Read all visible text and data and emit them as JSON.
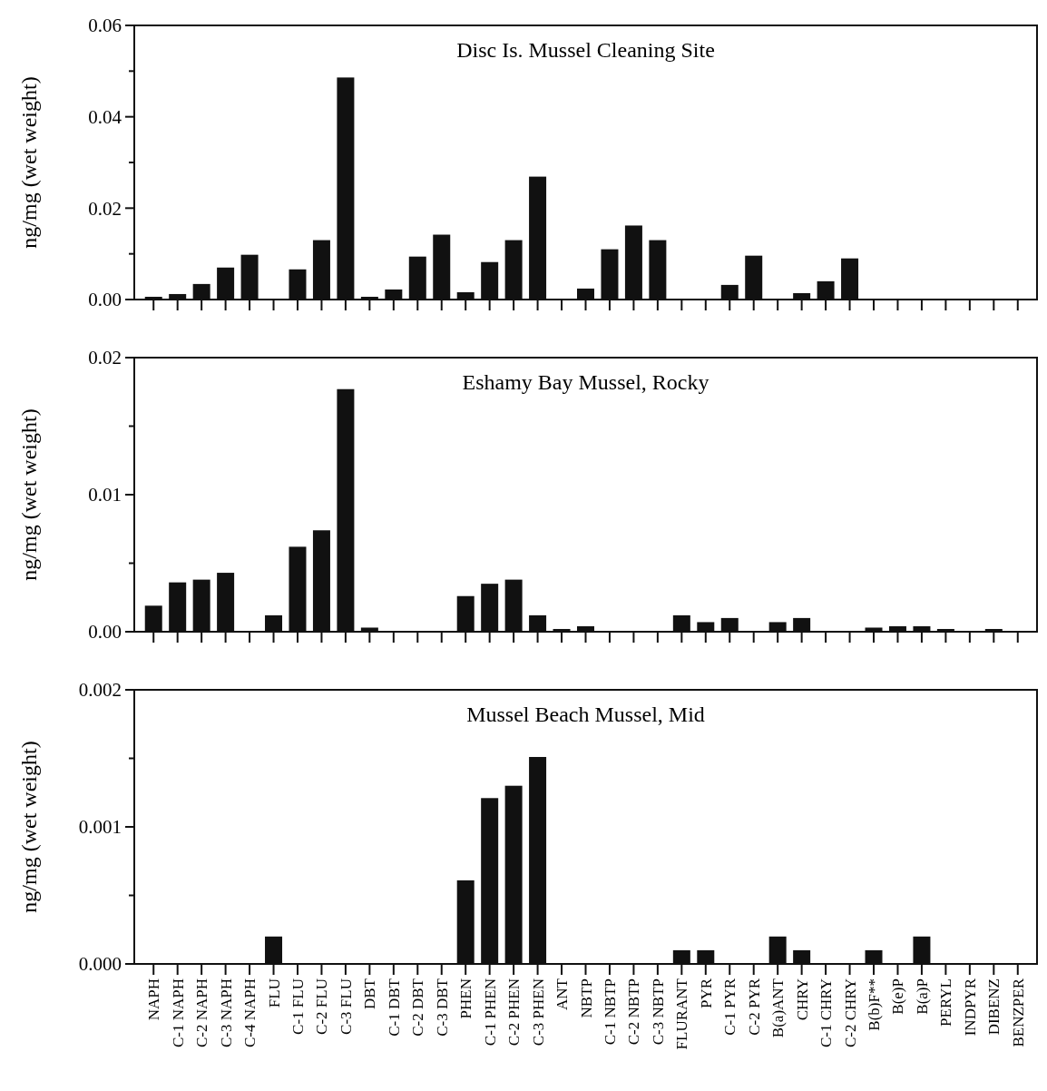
{
  "chart_data": [
    {
      "type": "bar",
      "title": "Disc Is. Mussel Cleaning Site",
      "ylabel": "ng/mg (wet weight)",
      "color": "#111111",
      "tick_labels": "y",
      "ylim": [
        0,
        0.06
      ],
      "yticks": [
        {
          "value": 0,
          "label": "0.00"
        },
        {
          "value": 0.01,
          "label": null
        },
        {
          "value": 0.02,
          "label": "0.02"
        },
        {
          "value": 0.03,
          "label": null
        },
        {
          "value": 0.04,
          "label": "0.04"
        },
        {
          "value": 0.05,
          "label": null
        },
        {
          "value": 0.06,
          "label": "0.06"
        }
      ],
      "categories": [
        "NAPH",
        "C-1 NAPH",
        "C-2 NAPH",
        "C-3 NAPH",
        "C-4 NAPH",
        "FLU",
        "C-1 FLU",
        "C-2 FLU",
        "C-3 FLU",
        "DBT",
        "C-1 DBT",
        "C-2 DBT",
        "C-3 DBT",
        "PHEN",
        "C-1 PHEN",
        "C-2 PHEN",
        "C-3 PHEN",
        "ANT",
        "NBTP",
        "C-1 NBTP",
        "C-2 NBTP",
        "C-3 NBTP",
        "FLURANT",
        "PYR",
        "C-1 PYR",
        "C-2 PYR",
        "B(a)ANT",
        "CHRY",
        "C-1 CHRY",
        "C-2 CHRY",
        "B(b)F**",
        "B(e)P",
        "B(a)P",
        "PERYL",
        "INDPYR",
        "DIBENZ",
        "BENZPER"
      ],
      "values": [
        0.0006,
        0.0012,
        0.0034,
        0.007,
        0.0098,
        0,
        0.0066,
        0.013,
        0.0486,
        0.0006,
        0.0022,
        0.0094,
        0.0142,
        0.0016,
        0.0082,
        0.013,
        0.0269,
        0,
        0.0024,
        0.011,
        0.0162,
        0.013,
        0,
        0,
        0.0032,
        0.0096,
        0,
        0.0014,
        0.004,
        0.009,
        0,
        0,
        0,
        0,
        0,
        0,
        0
      ]
    },
    {
      "type": "bar",
      "title": "Eshamy Bay Mussel, Rocky",
      "ylabel": "ng/mg (wet weight)",
      "color": "#111111",
      "tick_labels": "y",
      "ylim": [
        0,
        0.02
      ],
      "yticks": [
        {
          "value": 0,
          "label": "0.00"
        },
        {
          "value": 0.005,
          "label": null
        },
        {
          "value": 0.01,
          "label": "0.01"
        },
        {
          "value": 0.015,
          "label": null
        },
        {
          "value": 0.02,
          "label": "0.02"
        }
      ],
      "categories": [
        "NAPH",
        "C-1 NAPH",
        "C-2 NAPH",
        "C-3 NAPH",
        "C-4 NAPH",
        "FLU",
        "C-1 FLU",
        "C-2 FLU",
        "C-3 FLU",
        "DBT",
        "C-1 DBT",
        "C-2 DBT",
        "C-3 DBT",
        "PHEN",
        "C-1 PHEN",
        "C-2 PHEN",
        "C-3 PHEN",
        "ANT",
        "NBTP",
        "C-1 NBTP",
        "C-2 NBTP",
        "C-3 NBTP",
        "FLURANT",
        "PYR",
        "C-1 PYR",
        "C-2 PYR",
        "B(a)ANT",
        "CHRY",
        "C-1 CHRY",
        "C-2 CHRY",
        "B(b)F**",
        "B(e)P",
        "B(a)P",
        "PERYL",
        "INDPYR",
        "DIBENZ",
        "BENZPER"
      ],
      "values": [
        0.0019,
        0.0036,
        0.0038,
        0.0043,
        0,
        0.0012,
        0.0062,
        0.0074,
        0.0177,
        0.0003,
        0,
        0,
        0,
        0.0026,
        0.0035,
        0.0038,
        0.0012,
        0.0002,
        0.0004,
        0,
        0,
        0,
        0.0012,
        0.0007,
        0.001,
        0,
        0.0007,
        0.001,
        0,
        0,
        0.0003,
        0.0004,
        0.0004,
        0.0002,
        0,
        0.0002,
        0
      ]
    },
    {
      "type": "bar",
      "title": "Mussel Beach Mussel, Mid",
      "ylabel": "ng/mg (wet weight)",
      "color": "#111111",
      "ylim": [
        0,
        0.002
      ],
      "yticks": [
        {
          "value": 0,
          "label": "0.000"
        },
        {
          "value": 0.0005,
          "label": null
        },
        {
          "value": 0.001,
          "label": "0.001"
        },
        {
          "value": 0.0015,
          "label": null
        },
        {
          "value": 0.002,
          "label": "0.002"
        }
      ],
      "categories": [
        "NAPH",
        "C-1 NAPH",
        "C-2 NAPH",
        "C-3 NAPH",
        "C-4 NAPH",
        "FLU",
        "C-1 FLU",
        "C-2 FLU",
        "C-3 FLU",
        "DBT",
        "C-1 DBT",
        "C-2 DBT",
        "C-3 DBT",
        "PHEN",
        "C-1 PHEN",
        "C-2 PHEN",
        "C-3 PHEN",
        "ANT",
        "NBTP",
        "C-1 NBTP",
        "C-2 NBTP",
        "C-3 NBTP",
        "FLURANT",
        "PYR",
        "C-1 PYR",
        "C-2 PYR",
        "B(a)ANT",
        "CHRY",
        "C-1 CHRY",
        "C-2 CHRY",
        "B(b)F**",
        "B(e)P",
        "B(a)P",
        "PERYL",
        "INDPYR",
        "DIBENZ",
        "BENZPER"
      ],
      "values": [
        0,
        0,
        0,
        0,
        0,
        0.0002,
        0,
        0,
        0,
        0,
        0,
        0,
        0,
        0.00061,
        0.00121,
        0.0013,
        0.00151,
        0,
        0,
        0,
        0,
        0,
        0.0001,
        0.0001,
        0,
        0,
        0.0002,
        0.0001,
        0,
        0,
        0.0001,
        0,
        0.0002,
        0,
        0,
        0,
        0
      ]
    }
  ]
}
